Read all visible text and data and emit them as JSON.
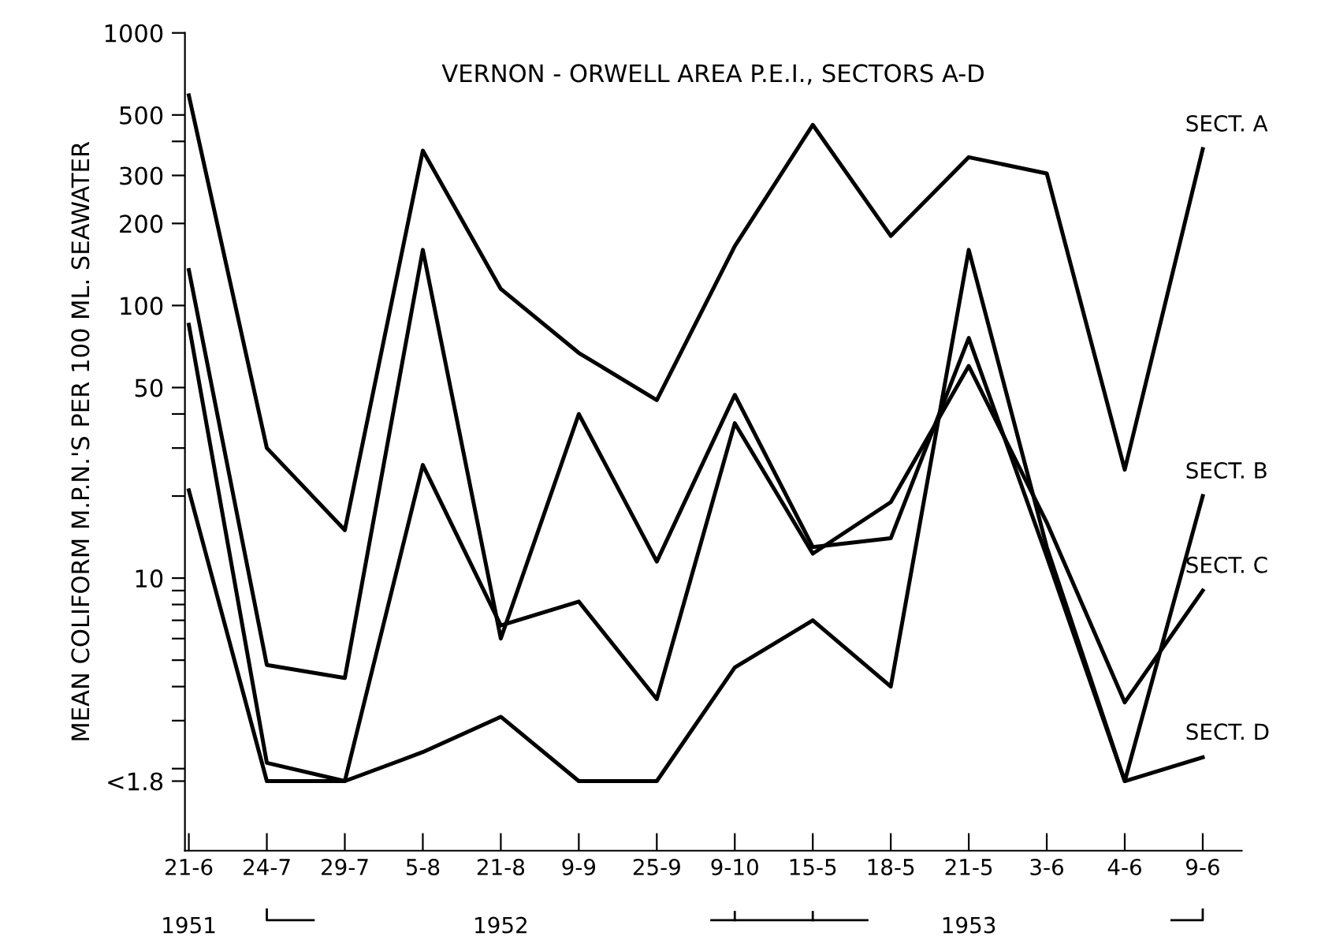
{
  "chart_data": {
    "type": "line",
    "title": "VERNON - ORWELL AREA P.E.I., SECTORS A-D",
    "ylabel": "MEAN COLIFORM M.P.N.'S PER 100 ML. SEAWATER",
    "categories": [
      "21-6",
      "24-7",
      "29-7",
      "5-8",
      "21-8",
      "9-9",
      "25-9",
      "9-10",
      "15-5",
      "18-5",
      "21-5",
      "3-6",
      "4-6",
      "9-6"
    ],
    "series": [
      {
        "name": "SECT. A",
        "color": "#000000",
        "values": [
          590,
          30,
          15,
          370,
          115,
          67,
          45,
          165,
          460,
          180,
          350,
          305,
          25,
          375
        ]
      },
      {
        "name": "SECT. B",
        "color": "#000000",
        "values": [
          135,
          4.8,
          4.3,
          160,
          6.0,
          40,
          11.5,
          47,
          13,
          14,
          76,
          12,
          1.8,
          20
        ]
      },
      {
        "name": "SECT. C",
        "color": "#000000",
        "values": [
          85,
          2.1,
          1.8,
          26,
          6.7,
          8.2,
          3.6,
          37,
          12.3,
          19,
          60,
          16,
          3.5,
          9
        ]
      },
      {
        "name": "SECT. D",
        "color": "#000000",
        "values": [
          21,
          1.8,
          1.8,
          2.3,
          3.1,
          1.8,
          1.8,
          4.7,
          7,
          4,
          160,
          13,
          1.8,
          2.2
        ]
      }
    ],
    "log": "y",
    "ylim": [
      1,
      1000
    ],
    "yticks": [
      {
        "value": 1.8,
        "label": "<1.8"
      },
      {
        "value": 2,
        "label": null
      },
      {
        "value": 3,
        "label": null
      },
      {
        "value": 4,
        "label": null
      },
      {
        "value": 5,
        "label": null
      },
      {
        "value": 6,
        "label": null
      },
      {
        "value": 7,
        "label": null
      },
      {
        "value": 8,
        "label": null
      },
      {
        "value": 9,
        "label": null
      },
      10,
      {
        "value": 20,
        "label": null
      },
      {
        "value": 30,
        "label": null
      },
      {
        "value": 40,
        "label": null
      },
      50,
      100,
      200,
      300,
      {
        "value": 400,
        "label": null
      },
      500,
      1000
    ],
    "annotations": [
      "1951",
      "1952",
      "1953"
    ],
    "grid": false,
    "legend": false,
    "marker": "none",
    "line_style": "solid"
  }
}
